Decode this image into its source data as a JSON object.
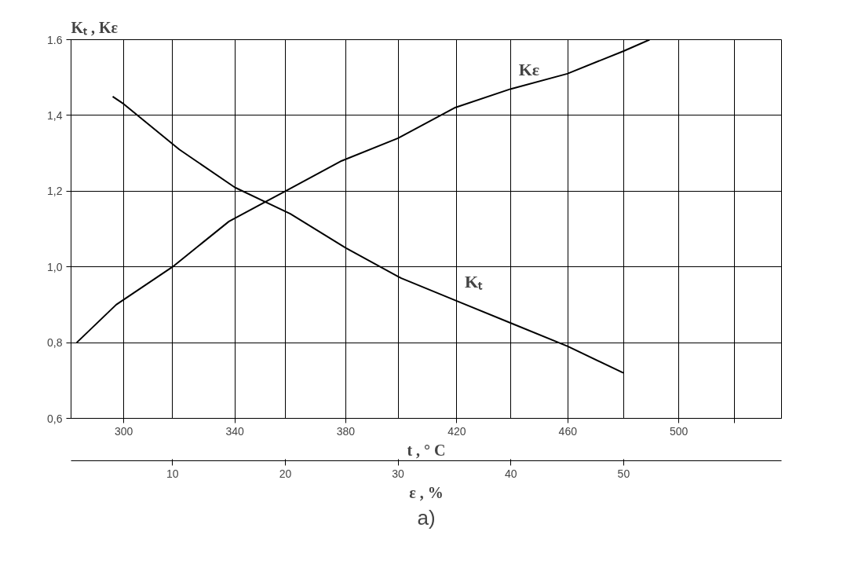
{
  "chart_data": {
    "type": "line",
    "ylabel": "Kₜ , Kε",
    "xlabel": "ε , %",
    "x2label": "t , ° C",
    "xlim": [
      1,
      64
    ],
    "xticks": [
      10,
      20,
      30,
      40,
      50
    ],
    "x2lim": [
      281,
      537
    ],
    "x2ticks": [
      300,
      340,
      380,
      420,
      460,
      500,
      {
        "value": 520,
        "label": null
      }
    ],
    "ylim": [
      0.6,
      1.6
    ],
    "yticks": [
      {
        "value": 0.6,
        "label": "0,6"
      },
      {
        "value": 0.8,
        "label": "0,8"
      },
      {
        "value": 1.0,
        "label": "1,0"
      },
      {
        "value": 1.2,
        "label": "1,2"
      },
      {
        "value": 1.4,
        "label": "1,4"
      },
      {
        "value": 1.6,
        "label": "1.6"
      }
    ],
    "grid": true,
    "marker": "none",
    "line_style": "solid",
    "series": [
      {
        "name": "Kε",
        "color": "#000000",
        "x": [
          1.5,
          5,
          10,
          15,
          20,
          25,
          30,
          35,
          40,
          45,
          50,
          52.3
        ],
        "values": [
          0.8,
          0.9,
          1.0,
          1.12,
          1.2,
          1.28,
          1.34,
          1.42,
          1.47,
          1.51,
          1.57,
          1.6
        ]
      },
      {
        "name": "Kₜ",
        "color": "#000000",
        "axis": "x2",
        "x": [
          296,
          300,
          320,
          340,
          360,
          380,
          400,
          420,
          440,
          460,
          480
        ],
        "values": [
          1.45,
          1.43,
          1.31,
          1.21,
          1.14,
          1.05,
          0.97,
          0.91,
          0.85,
          0.79,
          0.72
        ]
      }
    ],
    "annotations": [
      "a)"
    ]
  }
}
